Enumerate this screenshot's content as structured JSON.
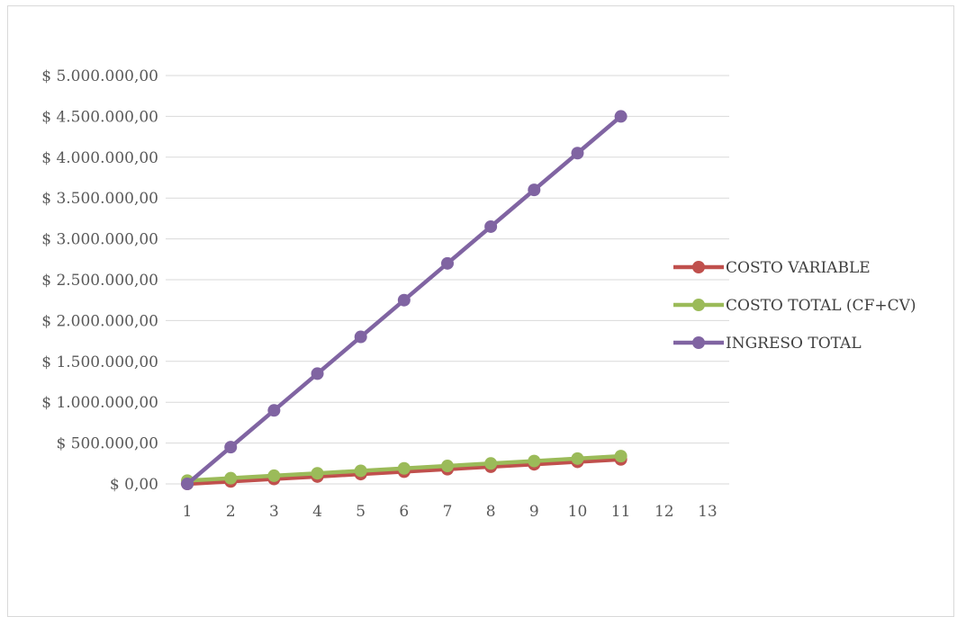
{
  "chart_data": {
    "type": "line",
    "title": "",
    "xlabel": "",
    "ylabel": "",
    "x_categories": [
      "1",
      "2",
      "3",
      "4",
      "5",
      "6",
      "7",
      "8",
      "9",
      "10",
      "11",
      "12",
      "13"
    ],
    "y_ticks": [
      {
        "value": 0,
        "label": "$ 0,00"
      },
      {
        "value": 500000,
        "label": "$ 500.000,00"
      },
      {
        "value": 1000000,
        "label": "$ 1.000.000,00"
      },
      {
        "value": 1500000,
        "label": "$ 1.500.000,00"
      },
      {
        "value": 2000000,
        "label": "$ 2.000.000,00"
      },
      {
        "value": 2500000,
        "label": "$ 2.500.000,00"
      },
      {
        "value": 3000000,
        "label": "$ 3.000.000,00"
      },
      {
        "value": 3500000,
        "label": "$ 3.500.000,00"
      },
      {
        "value": 4000000,
        "label": "$ 4.000.000,00"
      },
      {
        "value": 4500000,
        "label": "$ 4.500.000,00"
      },
      {
        "value": 5000000,
        "label": "$ 5.000.000,00"
      }
    ],
    "ylim": [
      0,
      5000000
    ],
    "grid": true,
    "legend_position": "right",
    "series": [
      {
        "name": "COSTO VARIABLE",
        "color": "#c0504d",
        "x": [
          1,
          2,
          3,
          4,
          5,
          6,
          7,
          8,
          9,
          10,
          11
        ],
        "values": [
          0,
          30000,
          60000,
          90000,
          120000,
          150000,
          180000,
          210000,
          240000,
          270000,
          300000
        ]
      },
      {
        "name": "COSTO TOTAL (CF+CV)",
        "color": "#9bbb59",
        "x": [
          1,
          2,
          3,
          4,
          5,
          6,
          7,
          8,
          9,
          10,
          11
        ],
        "values": [
          40000,
          70000,
          100000,
          130000,
          160000,
          190000,
          220000,
          250000,
          280000,
          310000,
          340000
        ]
      },
      {
        "name": "INGRESO TOTAL",
        "color": "#8064a2",
        "x": [
          1,
          2,
          3,
          4,
          5,
          6,
          7,
          8,
          9,
          10,
          11
        ],
        "values": [
          0,
          450000,
          900000,
          1350000,
          1800000,
          2250000,
          2700000,
          3150000,
          3600000,
          4050000,
          4500000
        ]
      }
    ]
  }
}
